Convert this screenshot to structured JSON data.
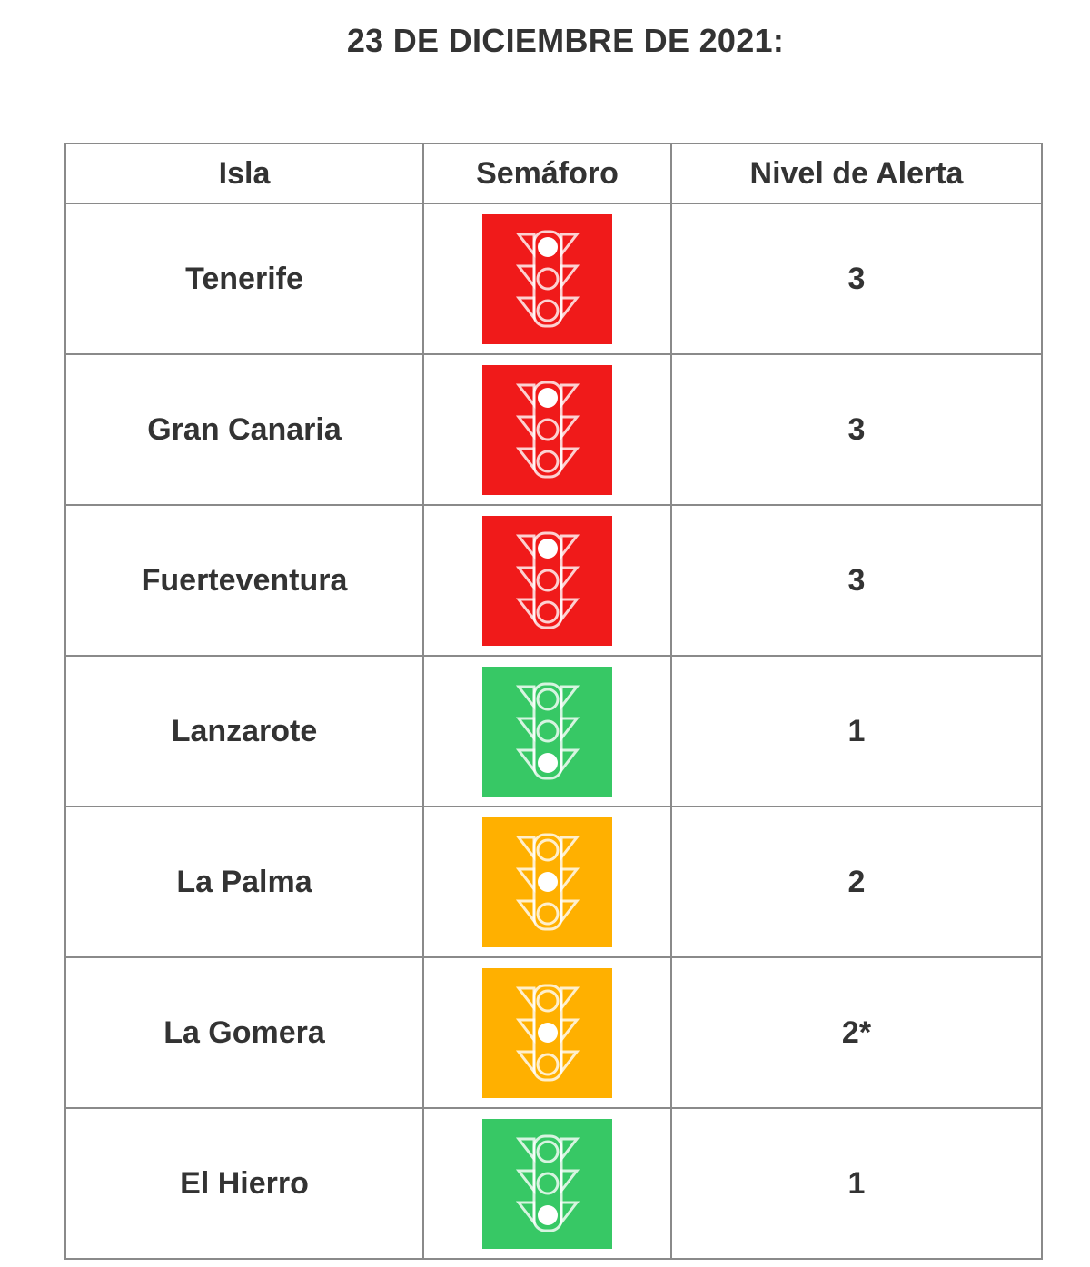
{
  "title": "23 DE DICIEMBRE DE 2021:",
  "colors": {
    "red": "#f01a1a",
    "green": "#37c865",
    "amber": "#ffb000"
  },
  "table": {
    "headers": [
      "Isla",
      "Semáforo",
      "Nivel de Alerta"
    ],
    "rows": [
      {
        "isla": "Tenerife",
        "semaforo": "red",
        "nivel": "3"
      },
      {
        "isla": "Gran Canaria",
        "semaforo": "red",
        "nivel": "3"
      },
      {
        "isla": "Fuerteventura",
        "semaforo": "red",
        "nivel": "3"
      },
      {
        "isla": "Lanzarote",
        "semaforo": "green",
        "nivel": "1"
      },
      {
        "isla": "La Palma",
        "semaforo": "amber",
        "nivel": "2"
      },
      {
        "isla": "La Gomera",
        "semaforo": "amber",
        "nivel": "2*"
      },
      {
        "isla": "El Hierro",
        "semaforo": "green",
        "nivel": "1"
      }
    ]
  }
}
